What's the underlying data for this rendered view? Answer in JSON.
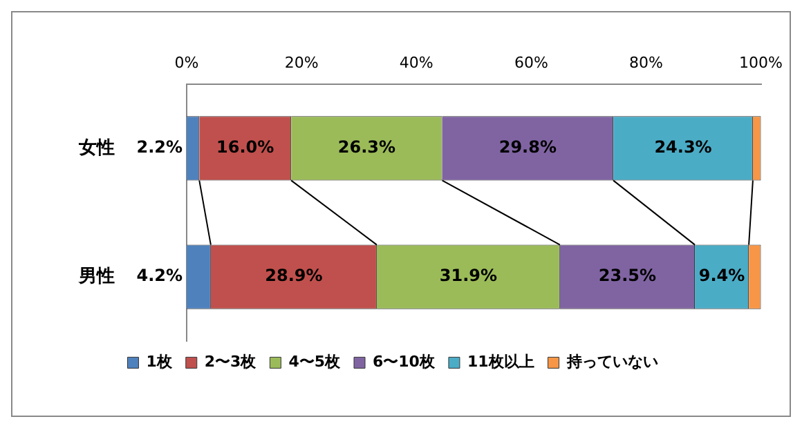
{
  "chart_data": {
    "type": "bar",
    "orientation": "horizontal",
    "stacked": true,
    "categories": [
      "女性",
      "男性"
    ],
    "xlim": [
      0,
      100
    ],
    "xticks": [
      {
        "value": 0,
        "label": "0%"
      },
      {
        "value": 20,
        "label": "20%"
      },
      {
        "value": 40,
        "label": "40%"
      },
      {
        "value": 60,
        "label": "60%"
      },
      {
        "value": 80,
        "label": "80%"
      },
      {
        "value": 100,
        "label": "100%"
      }
    ],
    "series": [
      {
        "name": "1枚",
        "color": "#4f81bd",
        "values": [
          2.2,
          4.2
        ],
        "value_labels": [
          "2.2%",
          "4.2%"
        ]
      },
      {
        "name": "2〜3枚",
        "color": "#c0504d",
        "values": [
          16.0,
          28.9
        ],
        "value_labels": [
          "16.0%",
          "28.9%"
        ]
      },
      {
        "name": "4〜5枚",
        "color": "#9bbb59",
        "values": [
          26.3,
          31.9
        ],
        "value_labels": [
          "26.3%",
          "31.9%"
        ]
      },
      {
        "name": "6〜10枚",
        "color": "#8064a2",
        "values": [
          29.8,
          23.5
        ],
        "value_labels": [
          "29.8%",
          "23.5%"
        ]
      },
      {
        "name": "11枚以上",
        "color": "#4bacc6",
        "values": [
          24.3,
          9.4
        ],
        "value_labels": [
          "24.3%",
          "9.4%"
        ]
      },
      {
        "name": "持っていない",
        "color": "#f79646",
        "values": [
          1.4,
          2.1
        ],
        "value_labels": [
          null,
          null
        ]
      }
    ],
    "legend": "bottom",
    "grid": false
  }
}
